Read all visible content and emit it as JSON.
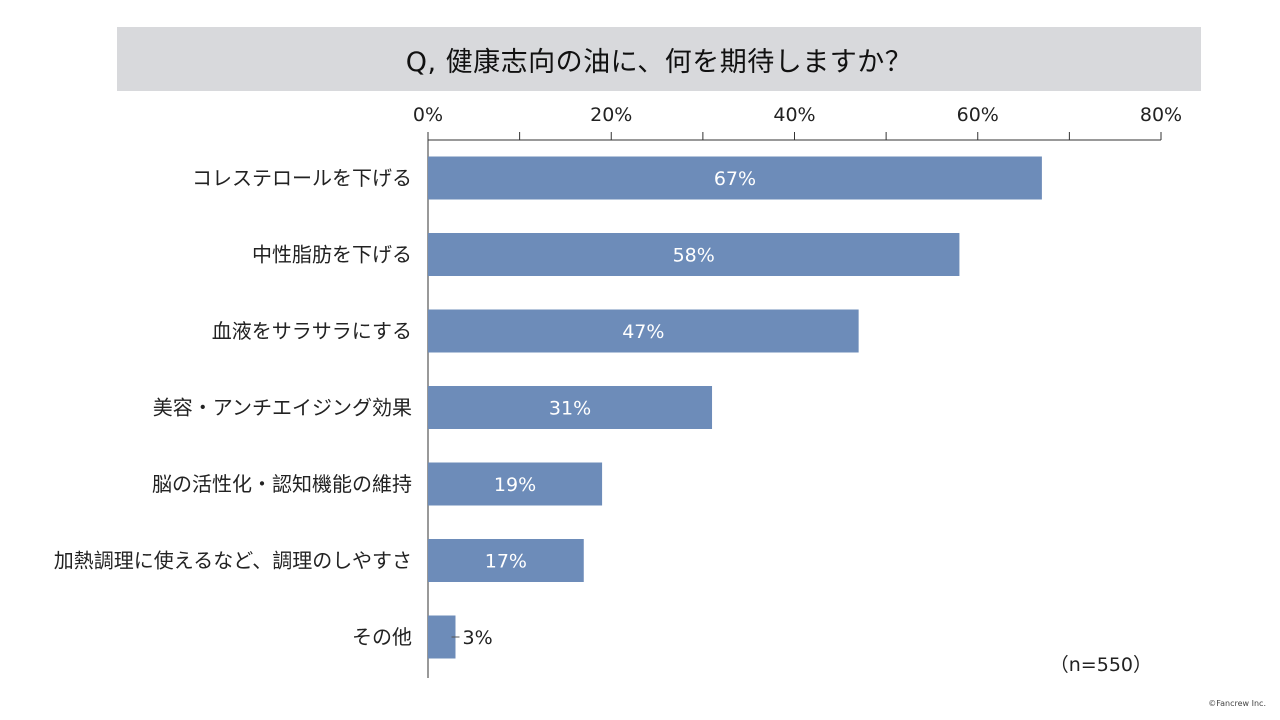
{
  "title": "Q, 健康志向の油に、何を期待しますか？",
  "note": "（n=550）",
  "credit": "©Fancrew Inc.",
  "colors": {
    "bar": "#6d8cb9",
    "axis": "#333333",
    "title_band": "#d8d9dc"
  },
  "chart_data": {
    "type": "bar",
    "orientation": "horizontal",
    "categories": [
      "コレステロールを下げる",
      "中性脂肪を下げる",
      "血液をサラサラにする",
      "美容・アンチエイジング効果",
      "脳の活性化・認知機能の維持",
      "加熱調理に使えるなど、調理のしやすさ",
      "その他"
    ],
    "values": [
      67,
      58,
      47,
      31,
      19,
      17,
      3
    ],
    "data_labels": [
      "67%",
      "58%",
      "47%",
      "31%",
      "19%",
      "17%",
      "3%"
    ],
    "xlim": [
      0,
      80
    ],
    "x_ticks": [
      0,
      20,
      40,
      60,
      80
    ],
    "x_tick_labels": [
      "0%",
      "20%",
      "40%",
      "60%",
      "80%"
    ],
    "x_axis_position": "top",
    "grid": false,
    "legend": "none"
  }
}
